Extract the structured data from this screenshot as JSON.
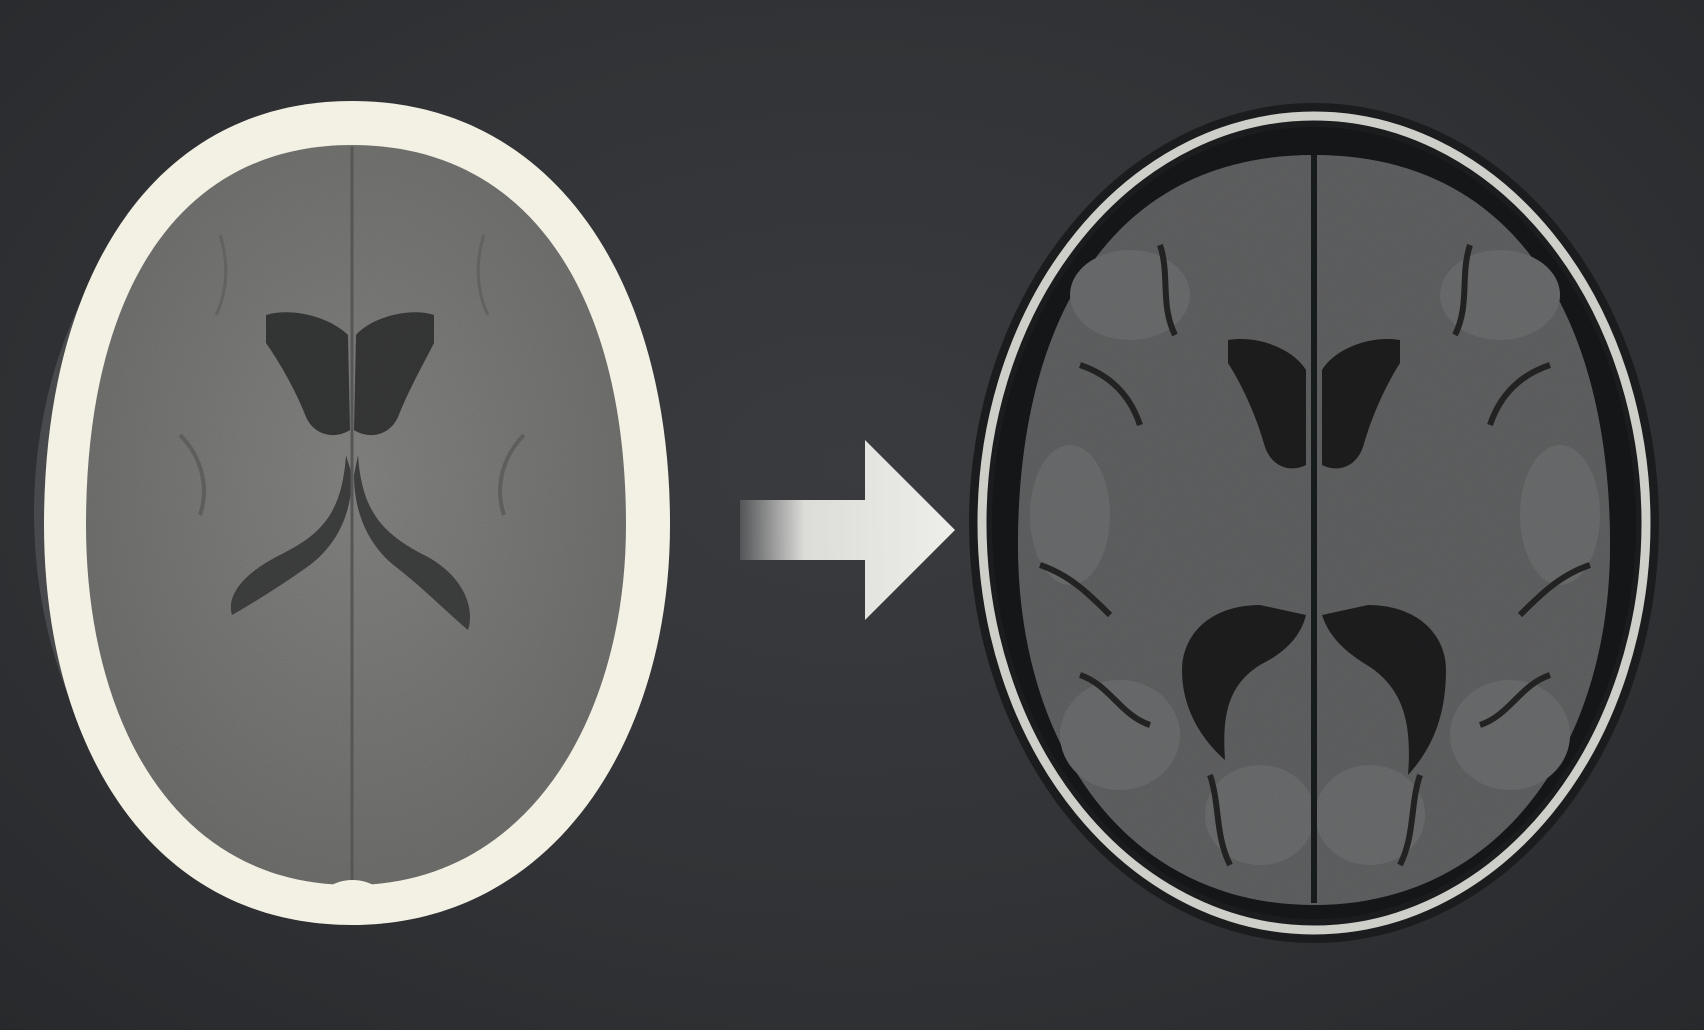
{
  "figure": {
    "description_visible_text": "",
    "panels": [
      {
        "id": "ct",
        "modality_icon": "ct-axial-brain-slice"
      },
      {
        "id": "arrow",
        "icon": "right-arrow-icon"
      },
      {
        "id": "mri",
        "modality_icon": "mri-axial-brain-slice"
      }
    ]
  },
  "colors": {
    "background": "#313336",
    "ct_skull": "#f4f1e6",
    "ct_brain": "#7a7a78",
    "ct_ventricle": "#353535",
    "mri_skull": "#c9c9c5",
    "mri_csf": "#141516",
    "mri_brain": "#5e5f60",
    "mri_ventricle": "#1c1d1e",
    "arrow": "#eeeeea"
  }
}
